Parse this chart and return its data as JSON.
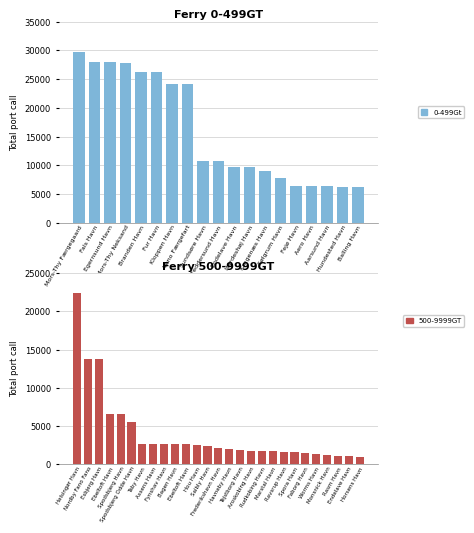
{
  "chart1": {
    "title": "Ferry 0-499GT",
    "ylabel": "Total port call",
    "bar_color": "#7EB6D9",
    "legend_label": "0-499Gt",
    "ylim": [
      0,
      35000
    ],
    "yticks": [
      0,
      5000,
      10000,
      15000,
      20000,
      25000,
      30000,
      35000
    ],
    "categories": [
      "Mors-Thy Færgegaard",
      "Fals Havn",
      "Egernsund Havn",
      "Mors-Thy Neksand",
      "Branden Havn",
      "Fur Havn",
      "Kloppen Havn",
      "Veno Færgefart",
      "Sundsøre Havn",
      "Feddersund Havn",
      "Endelave Havn",
      "Hardeshøj Havn",
      "Kragenæs Havn",
      "Sølgrum Havn",
      "Fejø Havn",
      "Aero Havn",
      "Aarsund Havn",
      "Hundested Havn",
      "Balling Havn"
    ],
    "values": [
      29700,
      28000,
      28000,
      27800,
      26300,
      26300,
      24200,
      24100,
      10700,
      10700,
      9800,
      9800,
      9000,
      7800,
      6500,
      6400,
      6400,
      6200,
      6200
    ]
  },
  "chart2": {
    "title": "Ferry 500-9999GT",
    "ylabel": "Total port call",
    "bar_color": "#C0504D",
    "legend_label": "500-9999GT",
    "ylim": [
      0,
      25000
    ],
    "yticks": [
      0,
      5000,
      10000,
      15000,
      20000,
      25000
    ],
    "categories": [
      "Helsingør Havn",
      "Nordby Fano Fano",
      "Esbjerg Havn",
      "Ebeltoft Havn",
      "Spodsbjerg Havn",
      "Spodsbjerg Odde Havn",
      "Taby Havn",
      "Assens Havn",
      "Fynshav Havn",
      "Bagen Havn",
      "Ebeltoft Havn",
      "Hou Havn",
      "Salbly Havn",
      "Frederikshavn Havn",
      "Havneby Havn",
      "Tejstborg Havn",
      "Aroskobing Havn",
      "Rudkobing Havn",
      "Marstal Havn",
      "Ravsrup Havn",
      "Spora Havn",
      "Faborg Havn",
      "Worms Havn",
      "Monsnick Havn",
      "Rasm Havn",
      "Endelave Havn",
      "Horsens Havn"
    ],
    "values": [
      22400,
      13800,
      13800,
      6600,
      6600,
      5600,
      2700,
      2600,
      2600,
      2600,
      2600,
      2500,
      2400,
      2100,
      2000,
      1900,
      1800,
      1800,
      1700,
      1600,
      1600,
      1500,
      1400,
      1200,
      1100,
      1100,
      1000
    ]
  }
}
